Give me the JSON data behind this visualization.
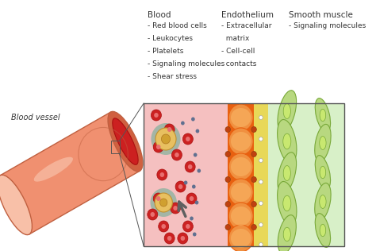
{
  "background_color": "#ffffff",
  "blood_vessel_label": "Blood vessel",
  "blood_label": "Blood",
  "endothelium_label": "Endothelium",
  "smooth_muscle_label": "Smooth muscle",
  "blood_items": [
    "- Red blood cells",
    "- Leukocytes",
    "- Platelets",
    "- Signaling molecules",
    "- Shear stress"
  ],
  "endothelium_items": [
    "- Extracellular\n  matrix",
    "- Cell-cell\n  contacts"
  ],
  "smooth_muscle_items": [
    "- Signaling molecules"
  ],
  "rbc_color": "#cc2222",
  "rbc_hole": "#e87070",
  "leukocyte_ring_color": "#40a888",
  "leukocyte_fill": "#e8c060",
  "leukocyte_nucleus": "#d0a030",
  "dot_color": "#607090",
  "arrow_color": "#606060",
  "endo_cell_color": "#e86010",
  "endo_cell_light": "#f09040",
  "junction_color": "#c04010",
  "sm_fill": "#b8d880",
  "sm_edge": "#78a838",
  "sm_nucleus": "#c8e870",
  "text_color": "#333333",
  "label_fontsize": 6.5,
  "header_fontsize": 7.5,
  "vessel_body": "#f09070",
  "vessel_highlight": "#f8c0a8",
  "vessel_shadow": "#d06040",
  "vessel_lumen": "#cc2020",
  "vessel_edge": "#c06040",
  "blood_bg": "#f5c0c0",
  "endo_bg": "#e86010",
  "yellow_bg": "#e8d858",
  "sm_bg": "#d8f0c8",
  "box_edge": "#555555"
}
